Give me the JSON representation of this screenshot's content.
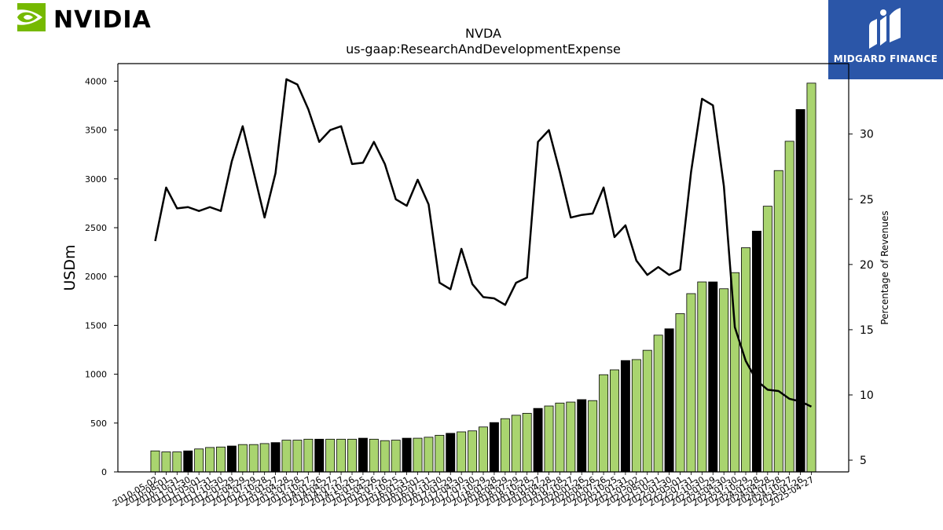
{
  "brand": {
    "left_logo_text": "NVIDIA",
    "right_logo_text": "MIDGARD FINANCE",
    "left_logo_color": "#76b900",
    "right_logo_bg": "#2b56a8"
  },
  "chart_data": {
    "type": "bar",
    "title": "NVDA",
    "subtitle": "us-gaap:ResearchAndDevelopmentExpense",
    "ylabel": "USDm",
    "y2label": "Percentage of Revenues",
    "ylim": [
      0,
      4180
    ],
    "y2lim": [
      4.1,
      35.4
    ],
    "yticks": [
      "0",
      "500",
      "1000",
      "1500",
      "2000",
      "2500",
      "3000",
      "3500",
      "4000"
    ],
    "y2ticks": [
      "5",
      "10",
      "15",
      "20",
      "25",
      "30"
    ],
    "bar_colors": {
      "quarter": "#a9d46f",
      "fiscal_year_end": "#000000"
    },
    "line_color": "#000000",
    "categories": [
      "2010-05-02",
      "2010-08-01",
      "2010-10-31",
      "2011-01-30",
      "2011-05-01",
      "2011-07-31",
      "2011-10-30",
      "2012-01-29",
      "2012-04-29",
      "2012-07-29",
      "2012-10-28",
      "2013-01-27",
      "2013-04-28",
      "2013-07-28",
      "2013-10-27",
      "2014-01-26",
      "2014-04-27",
      "2014-07-27",
      "2014-10-26",
      "2015-01-25",
      "2015-04-26",
      "2015-07-26",
      "2015-10-25",
      "2016-01-31",
      "2016-05-01",
      "2016-07-31",
      "2016-10-30",
      "2017-01-29",
      "2017-04-30",
      "2017-07-30",
      "2017-10-29",
      "2018-01-28",
      "2018-04-29",
      "2018-07-29",
      "2018-10-28",
      "2019-01-27",
      "2019-04-28",
      "2019-07-28",
      "2019-10-27",
      "2020-01-26",
      "2020-04-26",
      "2020-07-26",
      "2020-10-25",
      "2021-01-31",
      "2021-05-02",
      "2021-08-01",
      "2021-10-31",
      "2022-01-30",
      "2022-05-01",
      "2022-07-31",
      "2022-10-30",
      "2023-01-29",
      "2023-04-30",
      "2023-07-30",
      "2023-10-29",
      "2024-01-28",
      "2024-04-28",
      "2024-07-28",
      "2024-10-27",
      "2025-01-26",
      "2025-04-27"
    ],
    "values": [
      215,
      205,
      205,
      215,
      235,
      250,
      255,
      265,
      280,
      280,
      290,
      300,
      325,
      325,
      335,
      335,
      335,
      335,
      335,
      345,
      335,
      320,
      325,
      345,
      345,
      355,
      375,
      395,
      410,
      420,
      460,
      505,
      545,
      580,
      600,
      650,
      675,
      705,
      715,
      740,
      730,
      995,
      1045,
      1140,
      1150,
      1245,
      1400,
      1465,
      1620,
      1825,
      1945,
      1945,
      1875,
      2040,
      2295,
      2465,
      2720,
      3085,
      3385,
      3710,
      3980
    ],
    "year_end": [
      false,
      false,
      false,
      true,
      false,
      false,
      false,
      true,
      false,
      false,
      false,
      true,
      false,
      false,
      false,
      true,
      false,
      false,
      false,
      true,
      false,
      false,
      false,
      true,
      false,
      false,
      false,
      true,
      false,
      false,
      false,
      true,
      false,
      false,
      false,
      true,
      false,
      false,
      false,
      true,
      false,
      false,
      false,
      true,
      false,
      false,
      false,
      true,
      false,
      false,
      false,
      true,
      false,
      false,
      false,
      true,
      false,
      false,
      false,
      true,
      false
    ],
    "pct_of_revenues": [
      21.8,
      25.9,
      24.3,
      24.4,
      24.1,
      24.4,
      24.1,
      27.9,
      30.6,
      27.1,
      23.6,
      27.0,
      34.2,
      33.8,
      31.9,
      29.4,
      30.3,
      30.6,
      27.7,
      27.8,
      29.4,
      27.7,
      25.0,
      24.5,
      26.5,
      24.6,
      18.6,
      18.1,
      21.2,
      18.5,
      17.5,
      17.4,
      16.9,
      18.6,
      19.0,
      29.4,
      30.3,
      27.1,
      23.6,
      23.8,
      23.9,
      25.9,
      22.1,
      23.0,
      20.3,
      19.2,
      19.8,
      19.2,
      19.6,
      27.1,
      32.7,
      32.2,
      26.0,
      15.2,
      12.6,
      11.1,
      10.4,
      10.3,
      9.7,
      9.5,
      9.1
    ]
  }
}
